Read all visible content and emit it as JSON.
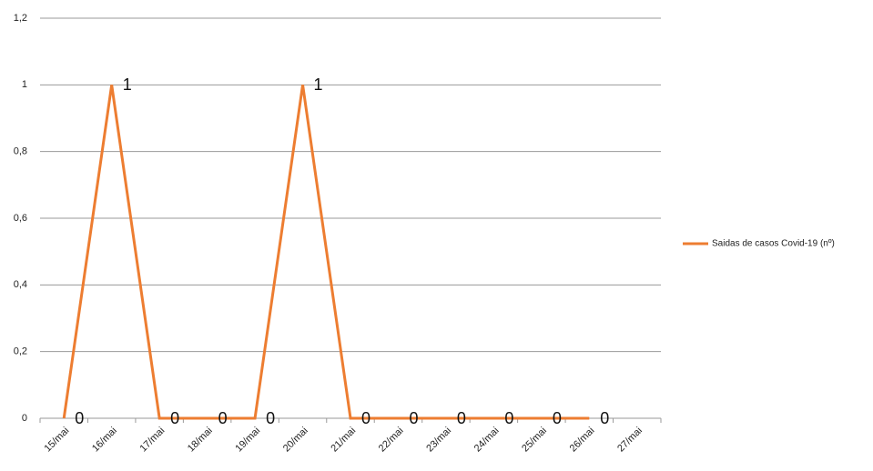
{
  "chart_data": {
    "type": "line",
    "categories": [
      "15/mai",
      "16/mai",
      "17/mai",
      "18/mai",
      "19/mai",
      "20/mai",
      "21/mai",
      "22/mai",
      "23/mai",
      "24/mai",
      "25/mai",
      "26/mai",
      "27/mai"
    ],
    "series": [
      {
        "name": "Saidas de casos Covid-19 (nº)",
        "color": "#ed7d31",
        "values": [
          0,
          1,
          0,
          0,
          0,
          1,
          0,
          0,
          0,
          0,
          0,
          0,
          null
        ]
      }
    ],
    "ylim": [
      0,
      1.2
    ],
    "yticks": [
      0,
      {
        "value": 0.2,
        "label": "0,2"
      },
      {
        "value": 0.4,
        "label": "0,4"
      },
      {
        "value": 0.6,
        "label": "0,6"
      },
      {
        "value": 0.8,
        "label": "0,8"
      },
      1,
      {
        "value": 1.2,
        "label": "1,2"
      }
    ],
    "grid": true,
    "legend": "right",
    "data_labels": true
  }
}
